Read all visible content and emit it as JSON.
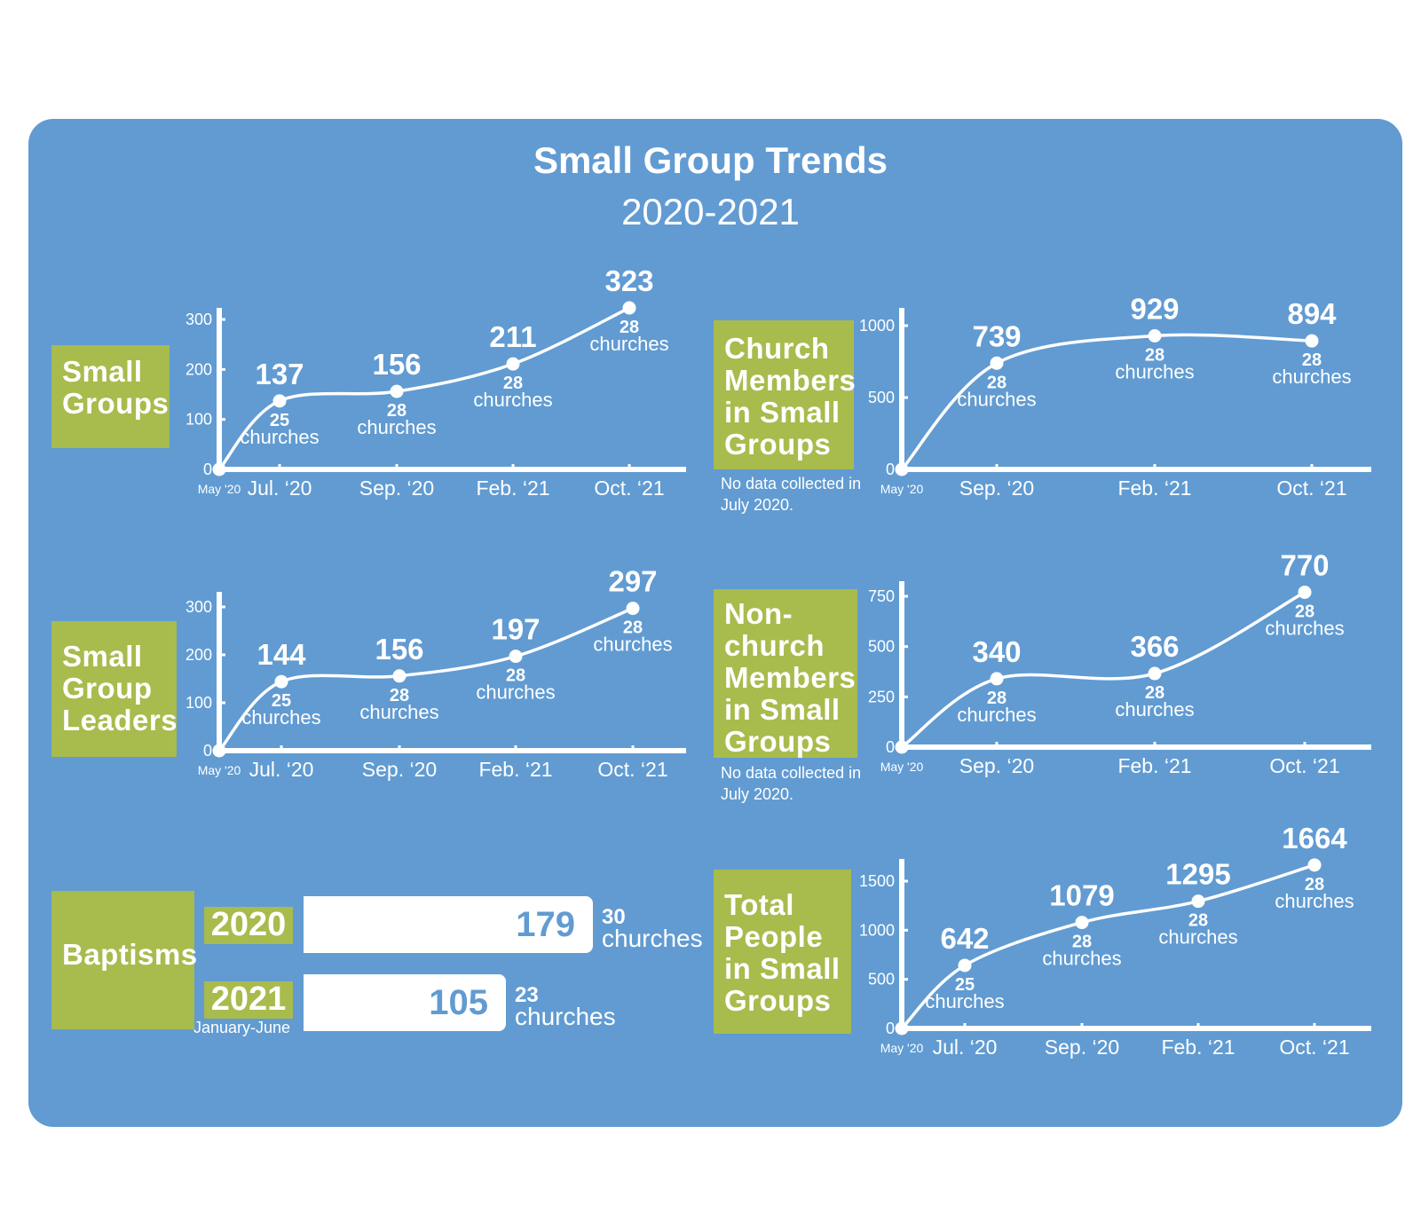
{
  "title": "Small Group Trends",
  "subtitle": "2020-2021",
  "colors": {
    "panel": "#619bd2",
    "label": "#a8bb4d",
    "line": "#ffffff"
  },
  "labels": {
    "small_groups": "Small Groups",
    "leaders": "Small Group Leaders",
    "members": "Church Members in Small Groups",
    "nonmembers": "Non-church Members in Small Groups",
    "total": "Total People in Small Groups",
    "baptisms": "Baptisms"
  },
  "notes": {
    "members": "No data collected in July 2020.",
    "nonmembers": "No data collected in July 2020."
  },
  "baptisms": {
    "rows": [
      {
        "year": "2020",
        "value": 179,
        "count": "30",
        "word": "churches",
        "sub": ""
      },
      {
        "year": "2021",
        "value": 105,
        "count": "23",
        "word": "churches",
        "sub": "January-June"
      }
    ]
  },
  "chart_data": [
    {
      "id": "small_groups",
      "type": "line",
      "x": [
        "May '20",
        "Jul. '20",
        "Sep. '20",
        "Feb. '21",
        "Oct. '21"
      ],
      "xticks": [
        "May '20",
        "Jul. ‘20",
        "Sep. ‘20",
        "Feb. ‘21",
        "Oct. ‘21"
      ],
      "values": [
        0,
        137,
        156,
        211,
        323
      ],
      "point_labels": [
        "",
        "137",
        "156",
        "211",
        "323"
      ],
      "churches": [
        "",
        "25",
        "28",
        "28",
        "28"
      ],
      "churches_word": "churches",
      "yticks": [
        0,
        100,
        200,
        300
      ],
      "ylim": [
        0,
        330
      ]
    },
    {
      "id": "members",
      "type": "line",
      "x": [
        "May '20",
        "Sep. '20",
        "Feb. '21",
        "Oct. '21"
      ],
      "xticks": [
        "May '20",
        "Sep. ‘20",
        "Feb. ‘21",
        "Oct. ‘21"
      ],
      "values": [
        0,
        739,
        929,
        894
      ],
      "point_labels": [
        "",
        "739",
        "929",
        "894"
      ],
      "churches": [
        "",
        "28",
        "28",
        "28"
      ],
      "churches_word": "churches",
      "yticks": [
        0,
        500,
        1000
      ],
      "ylim": [
        0,
        1000
      ]
    },
    {
      "id": "leaders",
      "type": "line",
      "x": [
        "May '20",
        "Jul. '20",
        "Sep. '20",
        "Feb. '21",
        "Oct. '21"
      ],
      "xticks": [
        "May '20",
        "Jul. ‘20",
        "Sep. ‘20",
        "Feb. ‘21",
        "Oct. ‘21"
      ],
      "values": [
        0,
        144,
        156,
        197,
        297
      ],
      "point_labels": [
        "",
        "144",
        "156",
        "197",
        "297"
      ],
      "churches": [
        "",
        "25",
        "28",
        "28",
        "28"
      ],
      "churches_word": "churches",
      "yticks": [
        0,
        100,
        200,
        300
      ],
      "ylim": [
        0,
        330
      ]
    },
    {
      "id": "nonmembers",
      "type": "line",
      "x": [
        "May '20",
        "Sep. '20",
        "Feb. '21",
        "Oct. '21"
      ],
      "xticks": [
        "May '20",
        "Sep. ‘20",
        "Feb. ‘21",
        "Oct. ‘21"
      ],
      "values": [
        0,
        340,
        366,
        770
      ],
      "point_labels": [
        "",
        "340",
        "366",
        "770"
      ],
      "churches": [
        "",
        "28",
        "28",
        "28"
      ],
      "churches_word": "churches",
      "yticks": [
        0,
        250,
        500,
        750
      ],
      "ylim": [
        0,
        790
      ]
    },
    {
      "id": "total",
      "type": "line",
      "x": [
        "May '20",
        "Jul. '20",
        "Sep. '20",
        "Feb. '21",
        "Oct. '21"
      ],
      "xticks": [
        "May '20",
        "Jul. ‘20",
        "Sep. ‘20",
        "Feb. ‘21",
        "Oct. ‘21"
      ],
      "values": [
        0,
        642,
        1079,
        1295,
        1664
      ],
      "point_labels": [
        "",
        "642",
        "1079",
        "1295",
        "1664"
      ],
      "churches": [
        "",
        "25",
        "28",
        "28",
        "28"
      ],
      "churches_word": "churches",
      "yticks": [
        0,
        500,
        1000,
        1500
      ],
      "ylim": [
        0,
        1600
      ]
    },
    {
      "id": "baptisms",
      "type": "bar",
      "categories": [
        "2020",
        "2021"
      ],
      "values": [
        179,
        105
      ]
    }
  ]
}
